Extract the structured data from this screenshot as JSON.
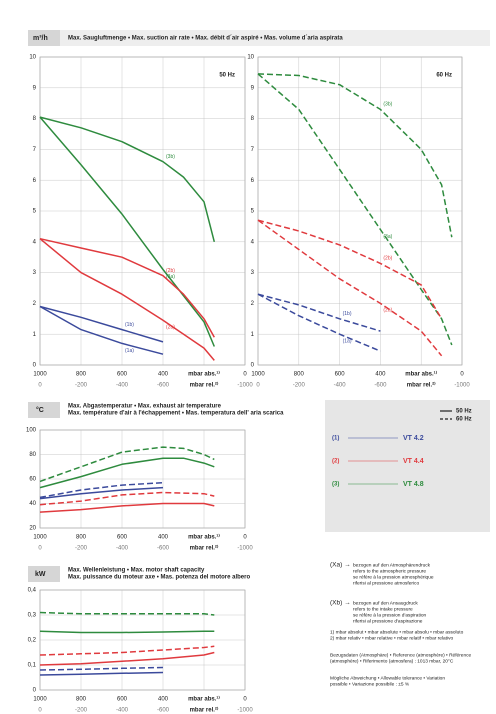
{
  "sections": [
    {
      "unit": "m³/h",
      "title": [
        "Max. Saugluftmenge • Max. suction air rate • Max. débit d´air aspiré • Mas. volume d´aria aspirata"
      ]
    },
    {
      "unit": "°C",
      "title": [
        "Max. Abgastemperatur • Max. exhaust air temperature",
        "Max. température d'air à l'échappement • Mas. temperatura dell' aria scarica"
      ]
    },
    {
      "unit": "kW",
      "title": [
        "Max. Wellenleistung • Max. motor shaft capacity",
        "Max. puissance du moteur axe • Mas. potenza del motore albero"
      ]
    }
  ],
  "chart_data": [
    {
      "type": "line",
      "label": "50 Hz",
      "grid": true,
      "xlim": [
        1000,
        0
      ],
      "xticks": [
        1000,
        800,
        600,
        400,
        {
          "value": 200,
          "label": "mbar abs.¹⁾"
        },
        0
      ],
      "x2lim": [
        0,
        -1000
      ],
      "x2ticks": [
        0,
        -200,
        -400,
        -600,
        {
          "value": -800,
          "label": "mbar rel.²⁾"
        },
        -1000
      ],
      "ylim": [
        0,
        10
      ],
      "yticks": [
        0,
        1,
        2,
        3,
        4,
        5,
        6,
        7,
        8,
        9,
        10
      ],
      "series": [
        {
          "name": "(3b)",
          "color": "#2e8b3e",
          "dash": false,
          "x": [
            1000,
            800,
            600,
            400,
            300,
            200,
            150
          ],
          "values": [
            8.05,
            7.7,
            7.25,
            6.6,
            6.1,
            5.3,
            4.0
          ]
        },
        {
          "name": "(3a)",
          "color": "#2e8b3e",
          "dash": false,
          "x": [
            1000,
            800,
            600,
            400,
            200,
            150
          ],
          "values": [
            8.05,
            6.5,
            4.9,
            3.1,
            1.4,
            0.6
          ]
        },
        {
          "name": "(2b)",
          "color": "#e03a3e",
          "dash": false,
          "x": [
            1000,
            800,
            600,
            400,
            300,
            200,
            150
          ],
          "values": [
            4.1,
            3.8,
            3.5,
            2.9,
            2.3,
            1.5,
            0.9
          ]
        },
        {
          "name": "(2a)",
          "color": "#e03a3e",
          "dash": false,
          "x": [
            1000,
            800,
            600,
            400,
            200,
            150
          ],
          "values": [
            4.1,
            3.0,
            2.3,
            1.45,
            0.55,
            0.15
          ]
        },
        {
          "name": "(1b)",
          "color": "#3b4a9c",
          "dash": false,
          "x": [
            1000,
            800,
            600,
            400
          ],
          "values": [
            1.9,
            1.55,
            1.15,
            0.75
          ]
        },
        {
          "name": "(1a)",
          "color": "#3b4a9c",
          "dash": false,
          "x": [
            1000,
            800,
            600,
            400
          ],
          "values": [
            1.9,
            1.15,
            0.7,
            0.35
          ]
        }
      ]
    },
    {
      "type": "line",
      "label": "60 Hz",
      "grid": true,
      "xlim": [
        1000,
        0
      ],
      "xticks": [
        1000,
        800,
        600,
        400,
        {
          "value": 200,
          "label": "mbar abs.¹⁾"
        },
        0
      ],
      "x2lim": [
        0,
        -1000
      ],
      "x2ticks": [
        0,
        -200,
        -400,
        -600,
        {
          "value": -800,
          "label": "mbar rel.²⁾"
        },
        -1000
      ],
      "ylim": [
        0,
        10
      ],
      "yticks": [
        0,
        1,
        2,
        3,
        4,
        5,
        6,
        7,
        8,
        9,
        10
      ],
      "series": [
        {
          "name": "(3b)",
          "color": "#2e8b3e",
          "dash": true,
          "x": [
            1000,
            800,
            600,
            400,
            200,
            100,
            50
          ],
          "values": [
            9.45,
            9.4,
            9.1,
            8.3,
            7.0,
            5.85,
            4.15
          ]
        },
        {
          "name": "(3a)",
          "color": "#2e8b3e",
          "dash": true,
          "x": [
            1000,
            800,
            600,
            400,
            200,
            100,
            50
          ],
          "values": [
            9.45,
            8.3,
            6.35,
            4.4,
            2.45,
            1.5,
            0.65
          ]
        },
        {
          "name": "(2b)",
          "color": "#e03a3e",
          "dash": true,
          "x": [
            1000,
            800,
            600,
            400,
            200,
            100
          ],
          "values": [
            4.7,
            4.35,
            3.9,
            3.3,
            2.6,
            1.5
          ]
        },
        {
          "name": "(2a)",
          "color": "#e03a3e",
          "dash": true,
          "x": [
            1000,
            800,
            600,
            400,
            200,
            100
          ],
          "values": [
            4.7,
            3.75,
            2.8,
            2.0,
            1.1,
            0.3
          ]
        },
        {
          "name": "(1b)",
          "color": "#3b4a9c",
          "dash": true,
          "x": [
            1000,
            800,
            600,
            400
          ],
          "values": [
            2.3,
            1.95,
            1.5,
            1.1
          ]
        },
        {
          "name": "(1a)",
          "color": "#3b4a9c",
          "dash": true,
          "x": [
            1000,
            800,
            600,
            400
          ],
          "values": [
            2.3,
            1.6,
            1.0,
            0.45
          ]
        }
      ]
    },
    {
      "type": "line",
      "grid": true,
      "xlim": [
        1000,
        0
      ],
      "xticks": [
        1000,
        800,
        600,
        400,
        {
          "value": 200,
          "label": "mbar abs.¹⁾"
        },
        0
      ],
      "x2lim": [
        0,
        -1000
      ],
      "x2ticks": [
        0,
        -200,
        -400,
        -600,
        {
          "value": -800,
          "label": "mbar rel.²⁾"
        },
        -1000
      ],
      "ylim": [
        20,
        100
      ],
      "yticks": [
        20,
        40,
        60,
        80,
        100
      ],
      "series": [
        {
          "color": "#2e8b3e",
          "dash": true,
          "x": [
            1000,
            800,
            600,
            400,
            300,
            200,
            150
          ],
          "values": [
            58,
            70,
            82,
            86,
            85,
            80,
            76
          ]
        },
        {
          "color": "#2e8b3e",
          "dash": false,
          "x": [
            1000,
            800,
            600,
            400,
            300,
            200,
            150
          ],
          "values": [
            53,
            62,
            72,
            77,
            77,
            73,
            70
          ]
        },
        {
          "color": "#3b4a9c",
          "dash": true,
          "x": [
            1000,
            800,
            600,
            400
          ],
          "values": [
            45,
            51,
            55,
            57
          ]
        },
        {
          "color": "#3b4a9c",
          "dash": false,
          "x": [
            1000,
            800,
            600,
            400
          ],
          "values": [
            44,
            48,
            51,
            53
          ]
        },
        {
          "color": "#e03a3e",
          "dash": true,
          "x": [
            1000,
            800,
            600,
            400,
            200,
            150
          ],
          "values": [
            39,
            42,
            47,
            49,
            48,
            46
          ]
        },
        {
          "color": "#e03a3e",
          "dash": false,
          "x": [
            1000,
            800,
            600,
            400,
            200,
            150
          ],
          "values": [
            33,
            35,
            38,
            40,
            40,
            38
          ]
        }
      ]
    },
    {
      "type": "line",
      "grid": true,
      "xlim": [
        1000,
        0
      ],
      "xticks": [
        1000,
        800,
        600,
        400,
        {
          "value": 200,
          "label": "mbar abs.¹⁾"
        },
        0
      ],
      "x2lim": [
        0,
        -1000
      ],
      "x2ticks": [
        0,
        -200,
        -400,
        -600,
        {
          "value": -800,
          "label": "mbar rel.²⁾"
        },
        -1000
      ],
      "ylim": [
        0,
        0.4
      ],
      "yticks": [
        0,
        {
          "value": 0.1,
          "label": "0,1"
        },
        {
          "value": 0.2,
          "label": "0,2"
        },
        {
          "value": 0.3,
          "label": "0,3"
        },
        {
          "value": 0.4,
          "label": "0,4"
        }
      ],
      "series": [
        {
          "color": "#2e8b3e",
          "dash": true,
          "x": [
            1000,
            800,
            600,
            400,
            200,
            150
          ],
          "values": [
            0.31,
            0.305,
            0.305,
            0.305,
            0.305,
            0.3
          ]
        },
        {
          "color": "#2e8b3e",
          "dash": false,
          "x": [
            1000,
            800,
            600,
            400,
            200,
            150
          ],
          "values": [
            0.235,
            0.23,
            0.23,
            0.232,
            0.235,
            0.235
          ]
        },
        {
          "color": "#e03a3e",
          "dash": true,
          "x": [
            1000,
            800,
            600,
            400,
            200,
            150
          ],
          "values": [
            0.14,
            0.145,
            0.15,
            0.16,
            0.17,
            0.175
          ]
        },
        {
          "color": "#e03a3e",
          "dash": false,
          "x": [
            1000,
            800,
            600,
            400,
            200,
            150
          ],
          "values": [
            0.1,
            0.105,
            0.115,
            0.125,
            0.14,
            0.15
          ]
        },
        {
          "color": "#3b4a9c",
          "dash": true,
          "x": [
            1000,
            800,
            600,
            400
          ],
          "values": [
            0.08,
            0.083,
            0.087,
            0.09
          ]
        },
        {
          "color": "#3b4a9c",
          "dash": false,
          "x": [
            1000,
            800,
            600,
            400
          ],
          "values": [
            0.06,
            0.063,
            0.067,
            0.07
          ]
        }
      ]
    }
  ],
  "legend": {
    "frequencies": [
      {
        "name": "50 Hz",
        "dash": false
      },
      {
        "name": "60 Hz",
        "dash": true
      }
    ],
    "models": [
      {
        "number": "(1)",
        "name": "VT 4.2",
        "color": "#3b4a9c"
      },
      {
        "number": "(2)",
        "name": "VT 4.4",
        "color": "#e03a3e"
      },
      {
        "number": "(3)",
        "name": "VT 4.8",
        "color": "#2e8b3e"
      }
    ]
  },
  "notes": {
    "keys": [
      {
        "key": "(Xa) →",
        "lines": [
          "bezogen auf den Atmosphärendruck",
          "refers to the atmospheric pressure",
          "se réfère à la pression atmosphérique",
          "riferisi al pressione atmosferico"
        ]
      },
      {
        "key": "(Xb) →",
        "lines": [
          "bezogen auf den Ansaugdruck",
          "refers to the intake pressure",
          "se réfère à la pression d'aspiration",
          "riferisi al pressione d'aspirazione"
        ]
      }
    ],
    "footnotes": [
      "1) mbar absolut • mbar absolute • mbar absolu • mbar assoluto",
      "2) mbar relativ • mbar relative • mbar relatif • mbar relativo"
    ],
    "reference": [
      "Bezugsdaten (Atmosphäre) • Reference (atmosphère) • Référence",
      "(atmosphère) • Riferimento (atmosfera) : 1013 mbar, 20°C"
    ],
    "tolerance": [
      "Mögliche Abweichung • Allowable tolerance • Variation",
      "possible • Variazione possibile : ±5 %"
    ]
  }
}
